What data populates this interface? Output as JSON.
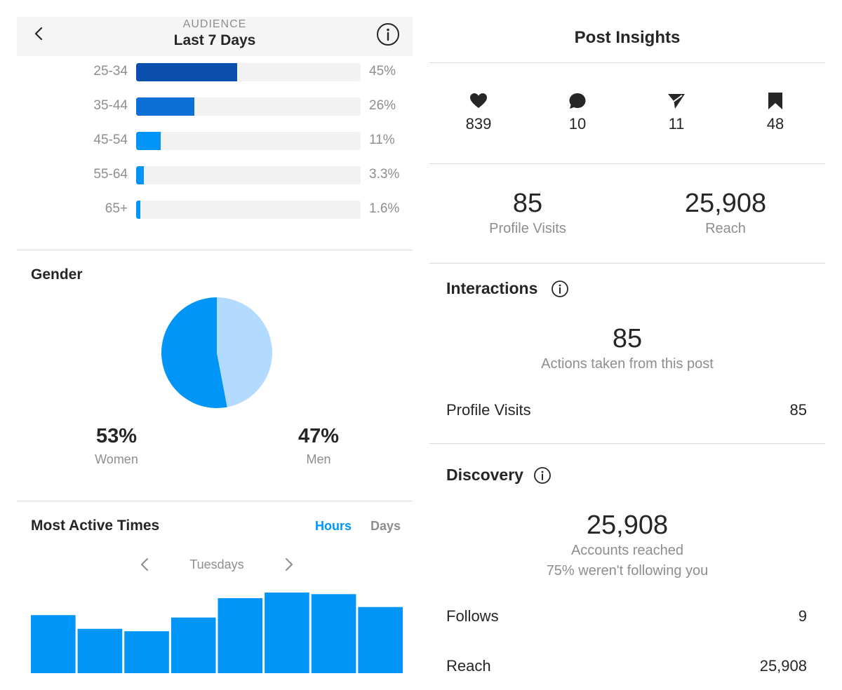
{
  "audience_panel": {
    "header": {
      "kicker": "AUDIENCE",
      "title": "Last 7 Days"
    },
    "age_ranges": [
      {
        "label": "25-34",
        "percent": "45%",
        "value": 45,
        "color": "#0a4fad"
      },
      {
        "label": "35-44",
        "percent": "26%",
        "value": 26,
        "color": "#0b6fd6"
      },
      {
        "label": "45-54",
        "percent": "11%",
        "value": 11,
        "color": "#0095f6"
      },
      {
        "label": "55-64",
        "percent": "3.3%",
        "value": 3.3,
        "color": "#0095f6"
      },
      {
        "label": "65+",
        "percent": "1.6%",
        "value": 1.6,
        "color": "#0095f6"
      }
    ],
    "gender": {
      "title": "Gender",
      "women": {
        "percent": "53%",
        "label": "Women",
        "value": 53,
        "color": "#0095f6"
      },
      "men": {
        "percent": "47%",
        "label": "Men",
        "value": 47,
        "color": "#b3dbff"
      }
    },
    "most_active": {
      "title": "Most Active Times",
      "toggle": {
        "hours": "Hours",
        "days": "Days",
        "active": "hours",
        "active_color": "#0095f6",
        "inactive_color": "#8e8e8e"
      },
      "day_label": "Tuesdays",
      "bar_color": "#0095f6",
      "bars": [
        0.72,
        0.55,
        0.52,
        0.69,
        0.93,
        1.0,
        0.98,
        0.82
      ]
    }
  },
  "post_insights": {
    "title": "Post Insights",
    "engagement": [
      {
        "icon": "heart-icon",
        "value": "839"
      },
      {
        "icon": "comment-icon",
        "value": "10"
      },
      {
        "icon": "share-icon",
        "value": "11"
      },
      {
        "icon": "bookmark-icon",
        "value": "48"
      }
    ],
    "summary": [
      {
        "value": "85",
        "label": "Profile Visits"
      },
      {
        "value": "25,908",
        "label": "Reach"
      }
    ],
    "interactions": {
      "title": "Interactions",
      "total": "85",
      "caption": "Actions taken from this post",
      "rows": [
        {
          "label": "Profile Visits",
          "value": "85"
        }
      ]
    },
    "discovery": {
      "title": "Discovery",
      "total": "25,908",
      "caption": "Accounts reached",
      "subcaption": "75% weren't following you",
      "rows": [
        {
          "label": "Follows",
          "value": "9"
        },
        {
          "label": "Reach",
          "value": "25,908"
        }
      ]
    }
  }
}
